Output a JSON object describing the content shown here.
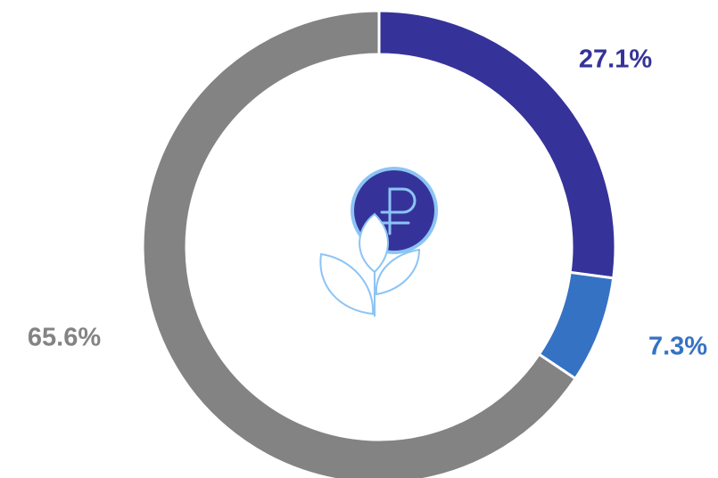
{
  "chart_data": {
    "type": "donut",
    "values": [
      27.1,
      7.3,
      65.6
    ],
    "value_labels": [
      "27.1%",
      "7.3%",
      "65.6%"
    ],
    "colors": [
      "#353399",
      "#3572c4",
      "#838383"
    ]
  }
}
